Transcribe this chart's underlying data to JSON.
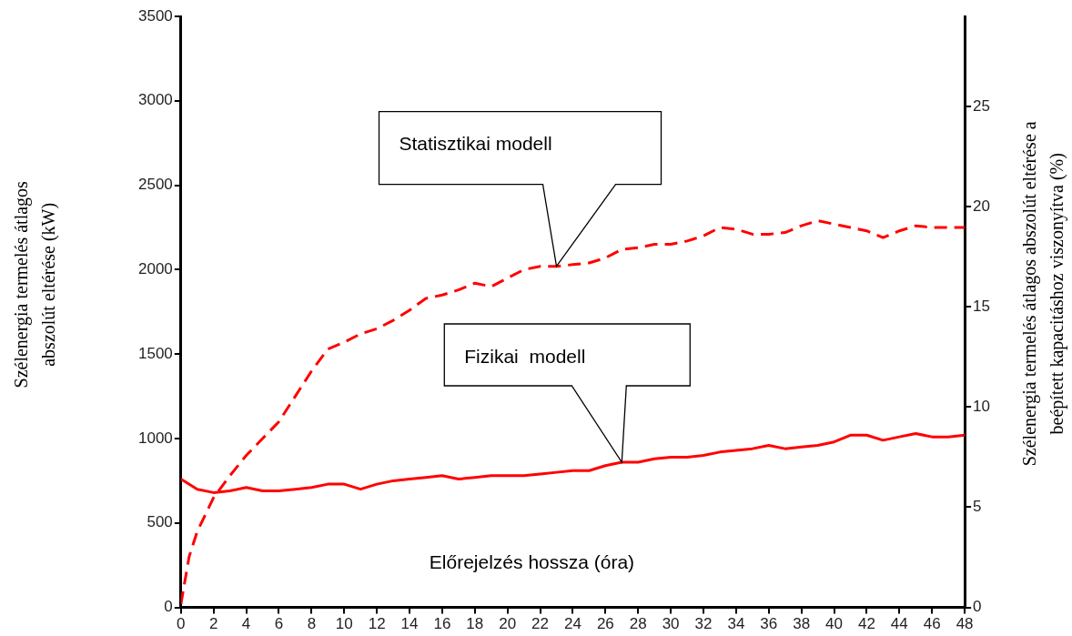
{
  "chart_data": {
    "type": "line",
    "xlabel": "Előrejelzés hossza (óra)",
    "ylabel": "Szélenergia termelés átlagos abszolút eltérése (kW)",
    "y2label": "Szélenergia termelés átlagos abszolút eltérése a beépített kapacitáshoz viszonyítva (%)",
    "x": [
      0,
      1,
      2,
      3,
      4,
      5,
      6,
      7,
      8,
      9,
      10,
      11,
      12,
      13,
      14,
      15,
      16,
      17,
      18,
      19,
      20,
      21,
      22,
      23,
      24,
      25,
      26,
      27,
      28,
      29,
      30,
      31,
      32,
      33,
      34,
      35,
      36,
      37,
      38,
      39,
      40,
      41,
      42,
      43,
      44,
      45,
      46,
      47,
      48
    ],
    "series": [
      {
        "color": "#ff0000",
        "line_style": "dashed",
        "x": [
          0,
          0.5,
          1,
          2,
          3,
          4,
          5,
          6,
          7,
          8,
          9,
          10,
          11,
          12,
          13,
          14,
          15,
          16,
          17,
          18,
          19,
          20,
          21,
          22,
          23,
          24,
          25,
          26,
          27,
          28,
          29,
          30,
          31,
          32,
          33,
          34,
          35,
          36,
          37,
          38,
          39,
          40,
          41,
          42,
          43,
          44,
          45,
          46,
          47,
          48
        ],
        "values": [
          20,
          300,
          450,
          650,
          780,
          900,
          1000,
          1100,
          1250,
          1400,
          1530,
          1570,
          1620,
          1650,
          1700,
          1760,
          1830,
          1850,
          1880,
          1920,
          1900,
          1950,
          2000,
          2020,
          2020,
          2030,
          2040,
          2070,
          2120,
          2130,
          2150,
          2150,
          2170,
          2200,
          2250,
          2240,
          2210,
          2210,
          2220,
          2260,
          2290,
          2270,
          2250,
          2230,
          2190,
          2230,
          2260,
          2250,
          2250,
          2250
        ]
      },
      {
        "color": "#ff0000",
        "line_style": "solid",
        "values": [
          760,
          700,
          680,
          690,
          710,
          690,
          690,
          700,
          710,
          730,
          730,
          700,
          730,
          750,
          760,
          770,
          780,
          760,
          770,
          780,
          780,
          780,
          790,
          800,
          810,
          810,
          840,
          860,
          860,
          880,
          890,
          890,
          900,
          920,
          930,
          940,
          960,
          940,
          950,
          960,
          980,
          1020,
          1020,
          990,
          1010,
          1030,
          1010,
          1010,
          1020
        ]
      }
    ],
    "xlim": [
      0,
      48
    ],
    "xticks": [
      0,
      2,
      4,
      6,
      8,
      10,
      12,
      14,
      16,
      18,
      20,
      22,
      24,
      26,
      28,
      30,
      32,
      34,
      36,
      38,
      40,
      42,
      44,
      46,
      48
    ],
    "ylim": [
      0,
      3500
    ],
    "yticks": [
      0,
      500,
      1000,
      1500,
      2000,
      2500,
      3000,
      3500
    ],
    "y2lim": [
      0,
      29.5
    ],
    "y2ticks": [
      0,
      5,
      10,
      15,
      20,
      25
    ],
    "grid": false,
    "legend": false,
    "marker": "none",
    "annotations": [
      "Statisztikai modell",
      "Fizikai  modell"
    ]
  }
}
